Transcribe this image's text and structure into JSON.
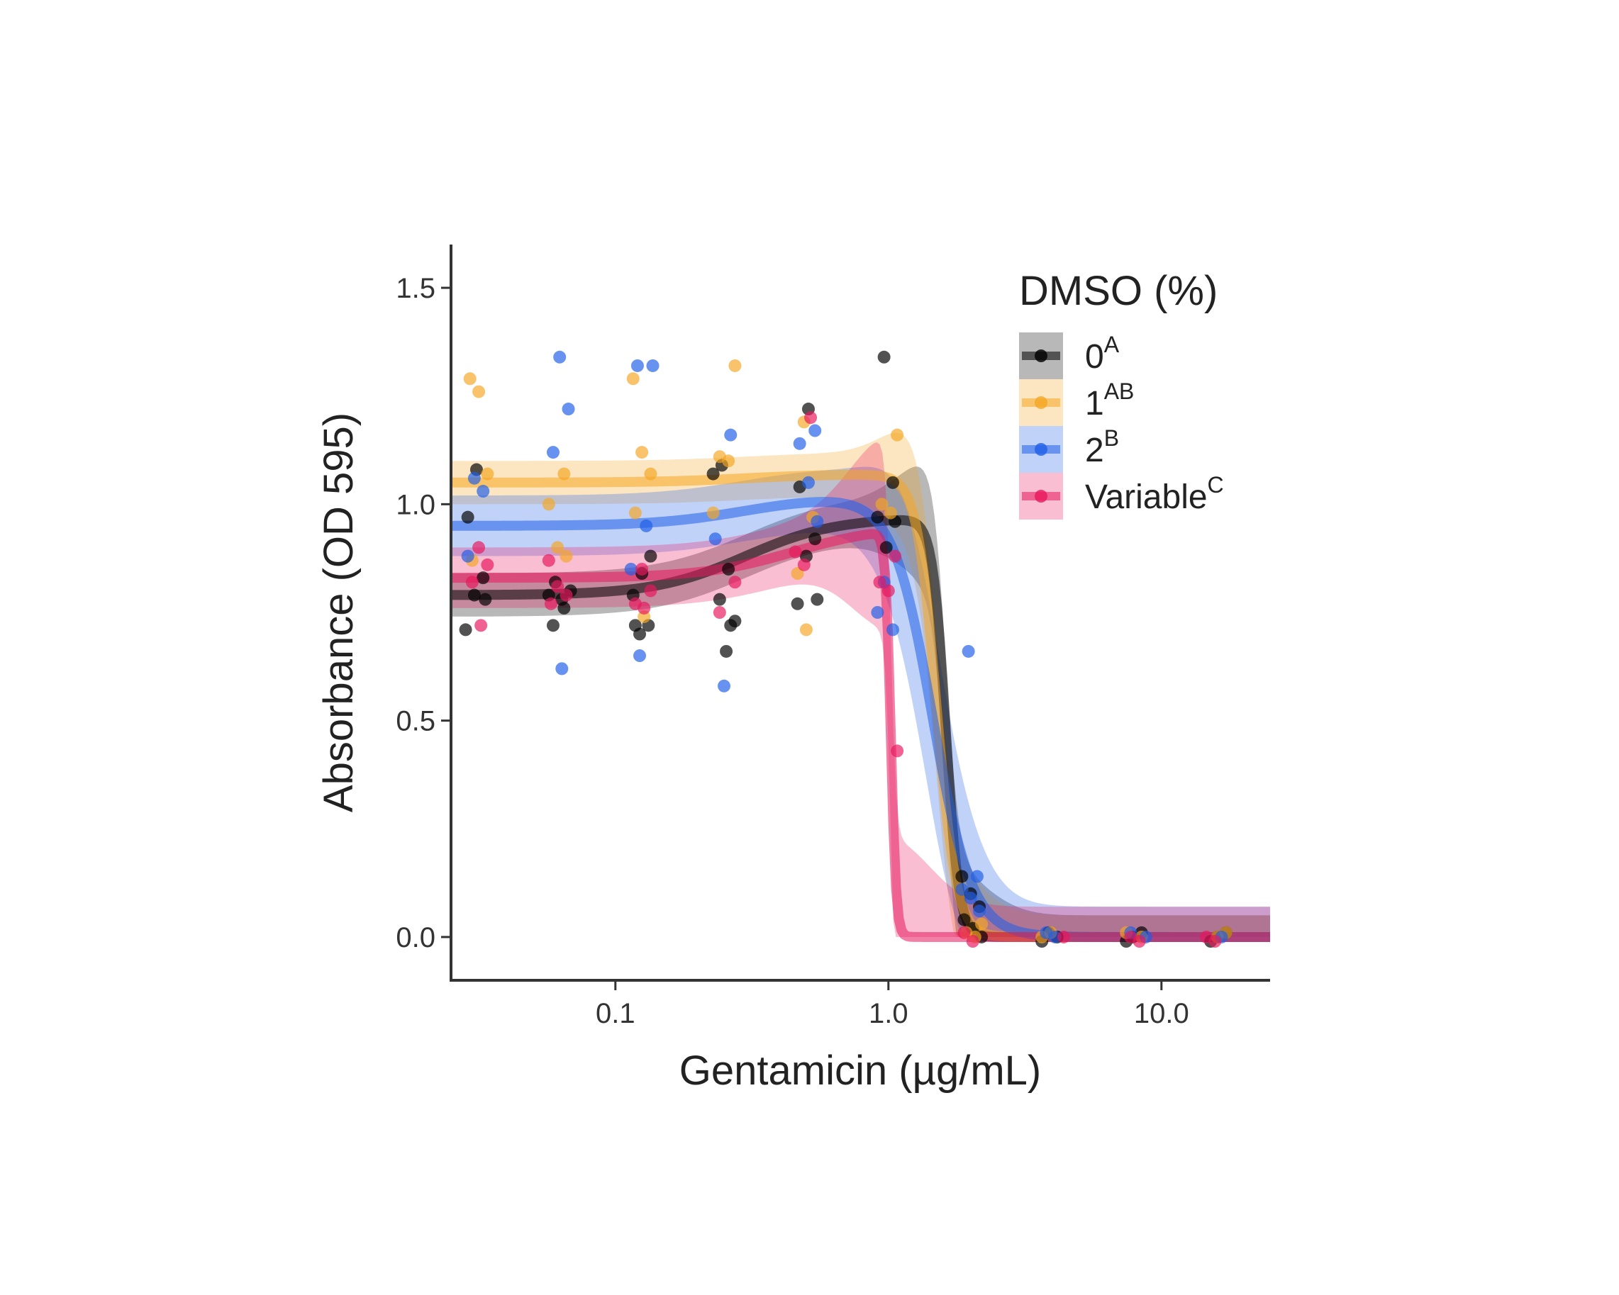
{
  "chart_data": {
    "type": "scatter",
    "xlabel": "Gentamicin (µg/mL)",
    "ylabel": "Absorbance (OD 595)",
    "x_scale": "log10",
    "xlim": [
      0.025,
      25
    ],
    "ylim": [
      -0.1,
      1.6
    ],
    "x_ticks": [
      0.1,
      1.0,
      10.0
    ],
    "x_tick_labels": [
      "0.1",
      "1.0",
      "10.0"
    ],
    "y_ticks": [
      0.0,
      0.5,
      1.0,
      1.5
    ],
    "y_tick_labels": [
      "0.0",
      "0.5",
      "1.0",
      "1.5"
    ],
    "grid": false,
    "legend": {
      "title": "DMSO (%)",
      "position": "top-right",
      "entries": [
        {
          "label": "0",
          "sup": "A"
        },
        {
          "label": "1",
          "sup": "AB"
        },
        {
          "label": "2",
          "sup": "B"
        },
        {
          "label": "Variable",
          "sup": "C"
        }
      ]
    },
    "series": [
      {
        "name": "0",
        "color": "#000000",
        "fit": {
          "top_low": 0.79,
          "top_high": 0.97,
          "x_rise": 0.3,
          "ic50": 1.62,
          "hill": 18,
          "band": 0.05
        },
        "points": [
          [
            0.031,
            0.71
          ],
          [
            0.031,
            0.79
          ],
          [
            0.031,
            0.83
          ],
          [
            0.031,
            0.97
          ],
          [
            0.031,
            1.08
          ],
          [
            0.031,
            0.78
          ],
          [
            0.0625,
            0.72
          ],
          [
            0.0625,
            0.78
          ],
          [
            0.0625,
            0.8
          ],
          [
            0.0625,
            0.82
          ],
          [
            0.0625,
            0.76
          ],
          [
            0.0625,
            0.79
          ],
          [
            0.125,
            0.7
          ],
          [
            0.125,
            0.72
          ],
          [
            0.125,
            0.79
          ],
          [
            0.125,
            0.84
          ],
          [
            0.125,
            0.88
          ],
          [
            0.125,
            0.72
          ],
          [
            0.25,
            0.66
          ],
          [
            0.25,
            0.73
          ],
          [
            0.25,
            0.78
          ],
          [
            0.25,
            0.85
          ],
          [
            0.25,
            1.07
          ],
          [
            0.25,
            1.09
          ],
          [
            0.25,
            0.72
          ],
          [
            0.5,
            0.77
          ],
          [
            0.5,
            0.88
          ],
          [
            0.5,
            0.92
          ],
          [
            0.5,
            1.04
          ],
          [
            0.5,
            1.22
          ],
          [
            0.5,
            0.78
          ],
          [
            1.0,
            1.34
          ],
          [
            1.0,
            1.05
          ],
          [
            1.0,
            0.97
          ],
          [
            1.0,
            0.9
          ],
          [
            1.0,
            0.96
          ],
          [
            2.0,
            0.14
          ],
          [
            2.0,
            0.1
          ],
          [
            2.0,
            0.07
          ],
          [
            2.0,
            0.04
          ],
          [
            2.0,
            0.02
          ],
          [
            2.0,
            0.0
          ],
          [
            4.0,
            0.01
          ],
          [
            4.0,
            0.0
          ],
          [
            4.0,
            -0.01
          ],
          [
            8.0,
            0.0
          ],
          [
            8.0,
            0.01
          ],
          [
            8.0,
            -0.01
          ],
          [
            16.0,
            0.0
          ],
          [
            16.0,
            0.01
          ],
          [
            16.0,
            -0.01
          ]
        ]
      },
      {
        "name": "1",
        "color": "#f5a623",
        "fit": {
          "top_low": 1.05,
          "top_high": 1.07,
          "x_rise": 0.3,
          "ic50": 1.5,
          "hill": 12,
          "band": 0.05
        },
        "points": [
          [
            0.031,
            1.29
          ],
          [
            0.031,
            1.26
          ],
          [
            0.031,
            1.07
          ],
          [
            0.031,
            0.87
          ],
          [
            0.0625,
            1.07
          ],
          [
            0.0625,
            1.0
          ],
          [
            0.0625,
            0.9
          ],
          [
            0.0625,
            0.88
          ],
          [
            0.125,
            1.29
          ],
          [
            0.125,
            1.12
          ],
          [
            0.125,
            1.07
          ],
          [
            0.125,
            0.98
          ],
          [
            0.125,
            0.74
          ],
          [
            0.25,
            1.32
          ],
          [
            0.25,
            1.11
          ],
          [
            0.25,
            1.1
          ],
          [
            0.25,
            0.98
          ],
          [
            0.5,
            1.19
          ],
          [
            0.5,
            0.97
          ],
          [
            0.5,
            0.84
          ],
          [
            0.5,
            0.71
          ],
          [
            1.0,
            1.16
          ],
          [
            1.0,
            1.0
          ],
          [
            1.0,
            0.98
          ],
          [
            2.0,
            0.03
          ],
          [
            2.0,
            0.01
          ],
          [
            2.0,
            0.0
          ],
          [
            4.0,
            0.0
          ],
          [
            4.0,
            0.01
          ],
          [
            8.0,
            0.0
          ],
          [
            8.0,
            0.01
          ],
          [
            16.0,
            0.0
          ],
          [
            16.0,
            0.01
          ]
        ]
      },
      {
        "name": "2",
        "color": "#1f5fe8",
        "fit": {
          "top_low": 0.95,
          "top_high": 1.02,
          "x_rise": 0.3,
          "ic50": 1.45,
          "hill": 6,
          "band": 0.07
        },
        "points": [
          [
            0.031,
            1.06
          ],
          [
            0.031,
            1.03
          ],
          [
            0.031,
            0.88
          ],
          [
            0.0625,
            1.34
          ],
          [
            0.0625,
            1.22
          ],
          [
            0.0625,
            1.12
          ],
          [
            0.0625,
            0.62
          ],
          [
            0.125,
            1.32
          ],
          [
            0.125,
            1.32
          ],
          [
            0.125,
            0.95
          ],
          [
            0.125,
            0.85
          ],
          [
            0.125,
            0.65
          ],
          [
            0.25,
            1.16
          ],
          [
            0.25,
            0.92
          ],
          [
            0.25,
            0.58
          ],
          [
            0.5,
            1.17
          ],
          [
            0.5,
            1.14
          ],
          [
            0.5,
            1.05
          ],
          [
            0.5,
            0.96
          ],
          [
            1.0,
            0.82
          ],
          [
            1.0,
            0.71
          ],
          [
            1.0,
            0.75
          ],
          [
            2.0,
            0.66
          ],
          [
            2.0,
            0.14
          ],
          [
            2.0,
            0.11
          ],
          [
            2.0,
            0.09
          ],
          [
            2.0,
            0.06
          ],
          [
            4.0,
            0.01
          ],
          [
            4.0,
            0.0
          ],
          [
            8.0,
            0.0
          ],
          [
            8.0,
            0.01
          ],
          [
            16.0,
            0.0
          ]
        ]
      },
      {
        "name": "Variable",
        "color": "#e8175d",
        "fit": {
          "top_low": 0.83,
          "top_high": 0.95,
          "x_rise": 0.45,
          "ic50": 1.02,
          "hill": 45,
          "band": 0.07
        },
        "points": [
          [
            0.031,
            0.9
          ],
          [
            0.031,
            0.86
          ],
          [
            0.031,
            0.82
          ],
          [
            0.031,
            0.72
          ],
          [
            0.0625,
            0.87
          ],
          [
            0.0625,
            0.81
          ],
          [
            0.0625,
            0.79
          ],
          [
            0.0625,
            0.77
          ],
          [
            0.125,
            0.85
          ],
          [
            0.125,
            0.8
          ],
          [
            0.125,
            0.77
          ],
          [
            0.125,
            0.76
          ],
          [
            0.25,
            0.82
          ],
          [
            0.25,
            0.75
          ],
          [
            0.5,
            1.2
          ],
          [
            0.5,
            0.89
          ],
          [
            0.5,
            0.86
          ],
          [
            1.0,
            0.88
          ],
          [
            1.0,
            0.82
          ],
          [
            1.0,
            0.8
          ],
          [
            1.0,
            0.43
          ],
          [
            2.0,
            0.01
          ],
          [
            2.0,
            -0.01
          ],
          [
            4.0,
            0.0
          ],
          [
            8.0,
            0.0
          ],
          [
            8.0,
            -0.01
          ],
          [
            16.0,
            0.0
          ],
          [
            16.0,
            -0.01
          ]
        ]
      }
    ]
  }
}
